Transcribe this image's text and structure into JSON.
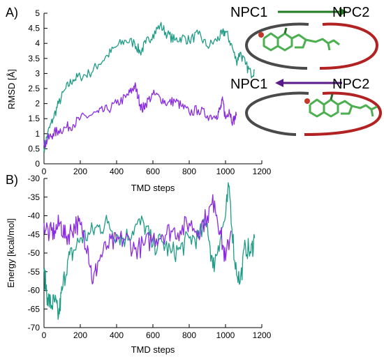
{
  "colors": {
    "teal": "#1f9c86",
    "purple": "#8a2be2",
    "green_arrow": "#1e7d1e",
    "purple_arrow": "#5b1a8a",
    "ring_gray": "#4a4a4a",
    "ring_red": "#b22222",
    "sterol": "#4caf50"
  },
  "panels": {
    "a_label": "A)",
    "b_label": "B)"
  },
  "inset": {
    "top_from": "NPC1",
    "top_to": "NPC2",
    "bottom_from": "NPC1",
    "bottom_to": "NPC2",
    "ring_icon": "npc-ring-icon",
    "molecule_icon": "cholesterol-molecule-icon"
  },
  "chart_data": [
    {
      "type": "line",
      "xlabel": "TMD steps",
      "ylabel": "RMSD  [Å]",
      "xlim": [
        0,
        1200
      ],
      "ylim": [
        0,
        5
      ],
      "xticks": [
        0,
        200,
        400,
        600,
        800,
        1000,
        1200
      ],
      "yticks": [
        0,
        0.5,
        1,
        1.5,
        2,
        2.5,
        3,
        3.5,
        4,
        4.5,
        5
      ],
      "grid": false,
      "series": [
        {
          "color": "#1f9c86",
          "x": [
            0,
            20,
            50,
            80,
            120,
            160,
            200,
            250,
            300,
            350,
            400,
            450,
            500,
            530,
            560,
            600,
            640,
            680,
            720,
            760,
            800,
            850,
            900,
            950,
            980,
            1000,
            1030,
            1060,
            1080,
            1110,
            1140,
            1160
          ],
          "y": [
            0.5,
            1.0,
            1.5,
            2.0,
            2.5,
            2.8,
            2.9,
            3.0,
            3.3,
            3.6,
            3.9,
            4.1,
            4.0,
            3.7,
            4.0,
            4.3,
            4.6,
            4.3,
            4.1,
            4.2,
            4.1,
            4.3,
            3.9,
            4.1,
            4.3,
            4.4,
            4.0,
            3.4,
            3.7,
            3.3,
            3.0,
            3.1
          ]
        },
        {
          "color": "#8a2be2",
          "x": [
            0,
            20,
            50,
            80,
            120,
            160,
            200,
            250,
            300,
            350,
            400,
            450,
            480,
            500,
            520,
            540,
            560,
            600,
            640,
            680,
            720,
            760,
            800,
            850,
            900,
            950,
            970,
            985,
            1000,
            1020,
            1040,
            1060
          ],
          "y": [
            0.6,
            0.8,
            1.0,
            1.1,
            1.2,
            1.3,
            1.5,
            1.6,
            1.7,
            1.8,
            2.0,
            2.2,
            2.4,
            2.6,
            2.2,
            1.8,
            2.0,
            2.3,
            2.2,
            2.0,
            2.1,
            1.9,
            1.7,
            1.8,
            1.6,
            1.6,
            1.8,
            2.1,
            1.5,
            1.8,
            1.4,
            1.6
          ]
        }
      ]
    },
    {
      "type": "line",
      "xlabel": "TMD steps",
      "ylabel": "Energy [kcal/mol]",
      "xlim": [
        0,
        1200
      ],
      "ylim": [
        -70,
        -30
      ],
      "xticks": [
        0,
        200,
        400,
        600,
        800,
        1000,
        1200
      ],
      "yticks": [
        -70,
        -65,
        -60,
        -55,
        -50,
        -45,
        -40,
        -35,
        -30
      ],
      "grid": false,
      "series": [
        {
          "color": "#1f9c86",
          "x": [
            0,
            20,
            40,
            60,
            80,
            100,
            130,
            160,
            200,
            250,
            300,
            350,
            400,
            450,
            500,
            550,
            600,
            650,
            700,
            750,
            800,
            850,
            900,
            930,
            960,
            1000,
            1020,
            1050,
            1080,
            1110,
            1140,
            1160
          ],
          "y": [
            -55,
            -62,
            -64,
            -63,
            -67,
            -60,
            -52,
            -50,
            -46,
            -45,
            -43,
            -42,
            -45,
            -46,
            -43,
            -42,
            -48,
            -47,
            -50,
            -49,
            -46,
            -46,
            -42,
            -54,
            -48,
            -40,
            -32,
            -52,
            -58,
            -48,
            -50,
            -46
          ]
        },
        {
          "color": "#8a2be2",
          "x": [
            0,
            30,
            60,
            90,
            120,
            150,
            180,
            210,
            240,
            270,
            300,
            350,
            400,
            450,
            500,
            550,
            600,
            650,
            700,
            750,
            800,
            850,
            900,
            940,
            970,
            1000,
            1030
          ],
          "y": [
            -42,
            -45,
            -44,
            -42,
            -46,
            -44,
            -42,
            -44,
            -48,
            -58,
            -52,
            -48,
            -47,
            -46,
            -49,
            -48,
            -46,
            -45,
            -44,
            -44,
            -42,
            -44,
            -40,
            -36,
            -44,
            -52,
            -44
          ]
        }
      ]
    }
  ]
}
